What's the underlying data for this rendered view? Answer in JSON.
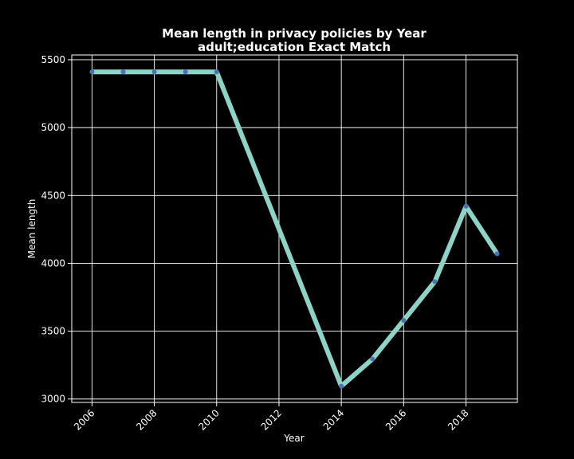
{
  "chart_data": {
    "type": "line",
    "title": "Mean length in privacy policies by Year",
    "subtitle": "adult;education Exact Match",
    "xlabel": "Year",
    "ylabel": "Mean length",
    "x": [
      2006,
      2007,
      2008,
      2009,
      2010,
      2014,
      2015,
      2016,
      2017,
      2018,
      2019
    ],
    "series": [
      {
        "values": [
          5410,
          5410,
          5410,
          5410,
          5410,
          3095,
          3295,
          3580,
          3865,
          4420,
          4070
        ]
      }
    ],
    "xlim": [
      2005.35,
      2019.65
    ],
    "ylim": [
      2975,
      5535
    ],
    "xticks": [
      2006,
      2008,
      2010,
      2012,
      2014,
      2016,
      2018
    ],
    "yticks": [
      3000,
      3500,
      4000,
      4500,
      5000,
      5500
    ],
    "grid": true,
    "line_color": "#8dd3c7",
    "marker_color": "#4c72b0",
    "background": "#000000"
  }
}
